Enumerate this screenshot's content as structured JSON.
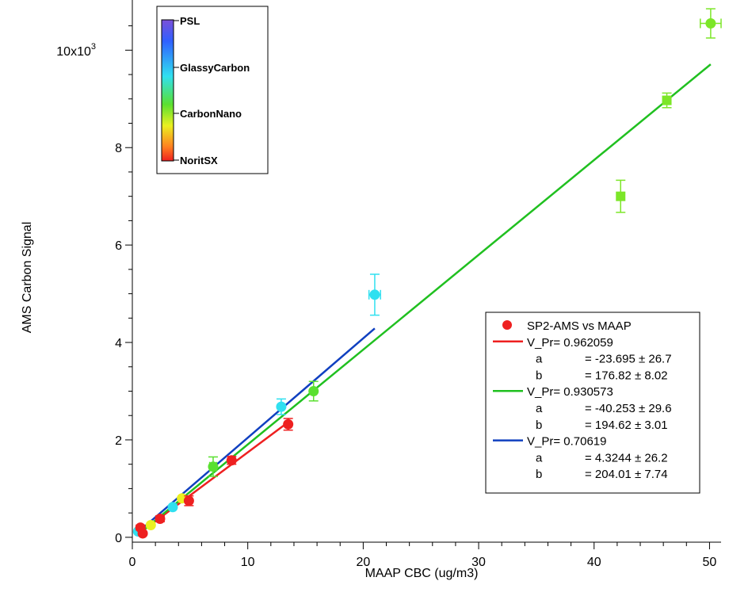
{
  "chart_data": {
    "type": "scatter",
    "xlabel": "MAAP CBC (ug/m3)",
    "ylabel": "AMS Carbon Signal",
    "xlim": [
      0,
      51
    ],
    "ylim": [
      -0.1,
      10.9
    ],
    "y_scale_note": "10x10",
    "y_scale_exp": "3",
    "x_ticks": [
      0,
      10,
      20,
      30,
      40,
      50
    ],
    "y_ticks": [
      {
        "v": 0,
        "label": "0"
      },
      {
        "v": 2,
        "label": "2"
      },
      {
        "v": 4,
        "label": "4"
      },
      {
        "v": 6,
        "label": "6"
      },
      {
        "v": 8,
        "label": "8"
      }
    ],
    "colorbar": {
      "labels": [
        "PSL",
        "GlassyCarbon",
        "CarbonNano",
        "NoritSX"
      ],
      "colors": [
        "#7a50d8",
        "#3060ff",
        "#30e0f0",
        "#5ae030",
        "#eaf020",
        "#ff8020",
        "#ee2020"
      ]
    },
    "points": [
      {
        "x": 0.5,
        "y": 0.12,
        "color": "#30e0f0",
        "shape": "circle"
      },
      {
        "x": 0.7,
        "y": 0.2,
        "color": "#ee2020",
        "shape": "circle",
        "ey": 0.05
      },
      {
        "x": 0.9,
        "y": 0.08,
        "color": "#ee2020",
        "shape": "circle"
      },
      {
        "x": 1.6,
        "y": 0.25,
        "color": "#eaf020",
        "shape": "circle"
      },
      {
        "x": 2.4,
        "y": 0.38,
        "color": "#ee2020",
        "shape": "circle",
        "ey": 0.06
      },
      {
        "x": 3.5,
        "y": 0.62,
        "color": "#30e0f0",
        "shape": "circle"
      },
      {
        "x": 4.3,
        "y": 0.8,
        "color": "#eaf020",
        "shape": "circle"
      },
      {
        "x": 4.9,
        "y": 0.75,
        "color": "#ee2020",
        "shape": "circle",
        "ey": 0.1
      },
      {
        "x": 7.0,
        "y": 1.45,
        "color": "#5ae030",
        "shape": "circle",
        "ey": 0.2,
        "ex": 0.3
      },
      {
        "x": 8.6,
        "y": 1.58,
        "color": "#ee2020",
        "shape": "circle",
        "ey": 0.08
      },
      {
        "x": 12.9,
        "y": 2.68,
        "color": "#30e0f0",
        "shape": "circle",
        "ey": 0.16
      },
      {
        "x": 13.5,
        "y": 2.32,
        "color": "#ee2020",
        "shape": "circle",
        "ey": 0.12
      },
      {
        "x": 15.7,
        "y": 3.0,
        "color": "#5ae030",
        "shape": "circle",
        "ey": 0.2
      },
      {
        "x": 21.0,
        "y": 4.98,
        "color": "#30e0f0",
        "shape": "circle",
        "ey": 0.42,
        "ex": 0.5
      },
      {
        "x": 42.3,
        "y": 7.0,
        "color": "#7ce628",
        "shape": "square",
        "ey": 0.33
      },
      {
        "x": 46.3,
        "y": 8.97,
        "color": "#7ce628",
        "shape": "square",
        "ey": 0.15
      },
      {
        "x": 50.1,
        "y": 10.55,
        "color": "#7ce628",
        "shape": "circle",
        "ey": 0.3,
        "ex": 0.9
      }
    ],
    "fit_lines": [
      {
        "x1": 0.5,
        "x2": 13.5,
        "slope": 0.17682,
        "intercept": -0.023695,
        "color": "#ee2020"
      },
      {
        "x1": 0.5,
        "x2": 50.1,
        "slope": 0.19462,
        "intercept": -0.040253,
        "color": "#20c020"
      },
      {
        "x1": 0.5,
        "x2": 21.0,
        "slope": 0.20401,
        "intercept": 0.0043244,
        "color": "#1040c0"
      }
    ],
    "legend": {
      "position": "right",
      "rows": [
        {
          "kind": "marker",
          "color": "#ee2020",
          "text": "SP2-AMS vs MAAP"
        },
        {
          "kind": "line",
          "color": "#ee2020",
          "text": "V_Pr= 0.962059"
        },
        {
          "kind": "param",
          "name": "a",
          "value": "= -23.695 ± 26.7"
        },
        {
          "kind": "param",
          "name": "b",
          "value": "= 176.82 ± 8.02"
        },
        {
          "kind": "line",
          "color": "#20c020",
          "text": "V_Pr= 0.930573"
        },
        {
          "kind": "param",
          "name": "a",
          "value": "= -40.253 ± 29.6"
        },
        {
          "kind": "param",
          "name": "b",
          "value": "= 194.62 ± 3.01"
        },
        {
          "kind": "line",
          "color": "#1040c0",
          "text": "V_Pr= 0.70619"
        },
        {
          "kind": "param",
          "name": "a",
          "value": "= 4.3244 ± 26.2"
        },
        {
          "kind": "param",
          "name": "b",
          "value": "= 204.01 ± 7.74"
        }
      ]
    }
  }
}
